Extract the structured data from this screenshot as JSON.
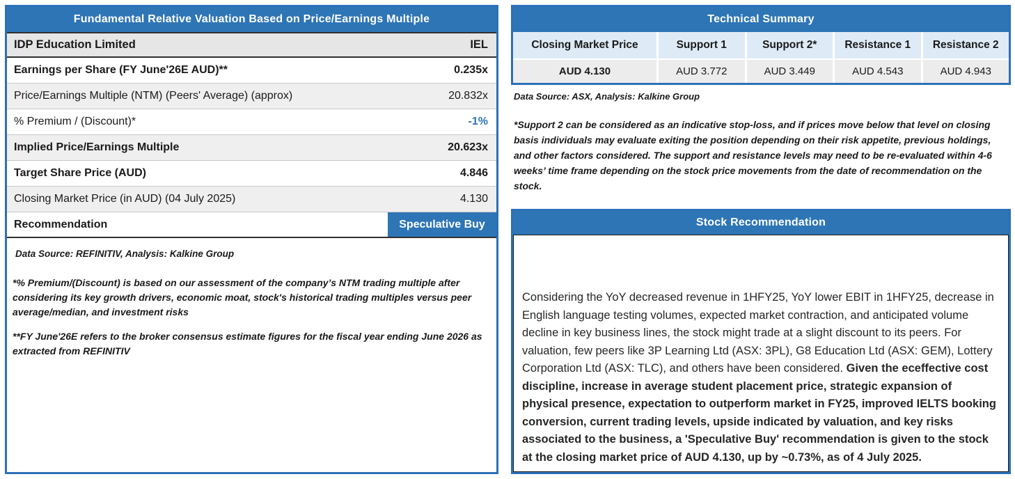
{
  "left_panel": {
    "title": "Fundamental Relative Valuation Based on Price/Earnings Multiple",
    "rows": [
      {
        "label": "IDP Education Limited",
        "value": "IEL"
      },
      {
        "label": "Earnings per Share (FY June'26E AUD)**",
        "value": "0.235x"
      },
      {
        "label": "Price/Earnings Multiple (NTM)  (Peers' Average) (approx)",
        "value": "20.832x"
      },
      {
        "label": "% Premium / (Discount)*",
        "value": "-1%"
      },
      {
        "label": "Implied Price/Earnings Multiple",
        "value": "20.623x"
      },
      {
        "label": "Target Share Price (AUD)",
        "value": "4.846"
      },
      {
        "label": "Closing Market Price (in AUD) (04 July 2025)",
        "value": "4.130"
      },
      {
        "label": "Recommendation",
        "value": "Speculative Buy"
      }
    ],
    "data_source": "Data Source: REFINITIV, Analysis: Kalkine Group",
    "footnote_premium": "*% Premium/(Discount) is based on our assessment of the company’s NTM trading multiple after considering its key growth drivers, economic moat, stock's historical trading multiples versus peer average/median, and investment risks",
    "footnote_fy26": "**FY June'26E refers to the broker consensus estimate figures for the fiscal year ending June 2026  as extracted from REFINITIV"
  },
  "technical_summary": {
    "title": "Technical Summary",
    "columns": [
      "Closing Market Price",
      "Support 1",
      "Support 2*",
      "Resistance 1",
      "Resistance 2"
    ],
    "values": [
      "AUD 4.130",
      "AUD 3.772",
      "AUD 3.449",
      "AUD 4.543",
      "AUD 4.943"
    ],
    "data_source": "Data Source: ASX, Analysis: Kalkine Group",
    "footnote": "*Support 2 can be considered as an indicative stop-loss, and if prices move below that level on closing basis individuals may evaluate exiting the position depending on their risk appetite, previous holdings, and other factors considered. The support and resistance levels may need to be re-evaluated within 4-6 weeks’ time frame depending on the stock price movements from the date of recommendation on the stock."
  },
  "stock_recommendation": {
    "title": "Stock Recommendation",
    "body_regular": "Considering the YoY decreased revenue in 1HFY25, YoY lower EBIT in 1HFY25, decrease in English language testing volumes, expected market contraction, and anticipated volume decline in key business lines, the stock might trade at a slight discount to its peers. For valuation, few peers like 3P Learning Ltd (ASX: 3PL), G8 Education Ltd (ASX: GEM), Lottery Corporation Ltd (ASX: TLC), and others have been considered. ",
    "body_bold": "Given the eceffective cost discipline, increase in average student placement price, strategic expansion of physical presence, expectation to outperform market in FY25, improved IELTS booking conversion, current trading levels, upside indicated by valuation, and key risks associated to the business, a 'Speculative Buy' recommendation is given to the stock at the closing market price of AUD 4.130, up by ~0.73%, as of 4 July 2025."
  },
  "colors": {
    "header_blue": "#2E75B6",
    "border_blue": "#2C70B8",
    "light_blue_cell": "#DEEBF7",
    "row_shade": "#EFEFEF",
    "company_row_gray": "#E7E6E6",
    "premium_value_blue": "#2E75B6"
  }
}
